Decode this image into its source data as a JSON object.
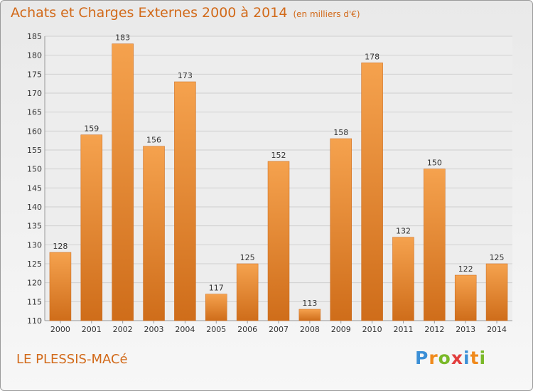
{
  "title": "Achats et Charges Externes 2000 à 2014",
  "unit": "(en milliers d'€)",
  "city": "LE PLESSIS-MACé",
  "logo": {
    "text": "Proxiti",
    "letters": [
      {
        "ch": "P",
        "color": "#3b8fd6"
      },
      {
        "ch": "r",
        "color": "#f08a1c"
      },
      {
        "ch": "o",
        "color": "#7ab929"
      },
      {
        "ch": "x",
        "color": "#e23d3d"
      },
      {
        "ch": "i",
        "color": "#3b8fd6"
      },
      {
        "ch": "t",
        "color": "#f08a1c"
      },
      {
        "ch": "i",
        "color": "#7ab929"
      }
    ]
  },
  "colors": {
    "accent": "#d26a1a",
    "bar_top": "#f5a24e",
    "bar_bottom": "#cf6d1a"
  },
  "chart_data": {
    "type": "bar",
    "categories": [
      "2000",
      "2001",
      "2002",
      "2003",
      "2004",
      "2005",
      "2006",
      "2007",
      "2008",
      "2009",
      "2010",
      "2011",
      "2012",
      "2013",
      "2014"
    ],
    "values": [
      128,
      159,
      183,
      156,
      173,
      117,
      125,
      152,
      113,
      158,
      178,
      132,
      150,
      122,
      125
    ],
    "ylim": [
      110,
      185
    ],
    "yticks": [
      110,
      115,
      120,
      125,
      130,
      135,
      140,
      145,
      150,
      155,
      160,
      165,
      170,
      175,
      180,
      185
    ],
    "grid": true,
    "data_labels": true
  }
}
